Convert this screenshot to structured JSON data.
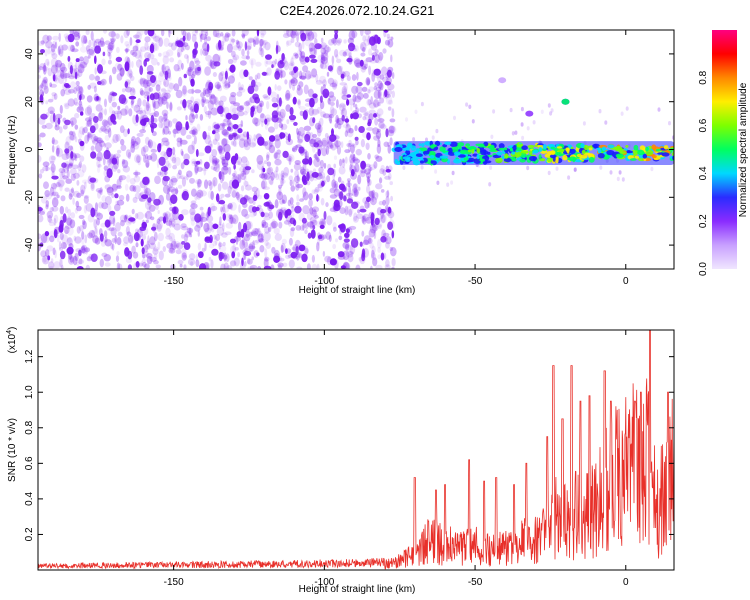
{
  "figure_title": "C2E4.2026.072.10.24.G21",
  "colors": {
    "snr_line": "#e8302a",
    "spec_dot": "#7c1cf0",
    "axis": "#000000"
  },
  "chart_data": [
    {
      "type": "heatmap",
      "name": "spectrogram",
      "title": "",
      "xlabel": "Height of straight line (km)",
      "ylabel": "Frequency (Hz)",
      "xlim": [
        -195,
        16
      ],
      "ylim": [
        -50,
        50
      ],
      "xticks": [
        -150,
        -100,
        -50,
        0
      ],
      "yticks": [
        -40,
        -20,
        0,
        20,
        40
      ],
      "noise_region_x": [
        -195,
        -77
      ],
      "signal_band": {
        "x_start": -77,
        "x_end": 16,
        "center_hz": -1.5,
        "half_width_hz": 5
      },
      "colorbar": {
        "label": "Normalized spectral amplitude",
        "range": [
          0,
          1
        ],
        "ticks": [
          0.0,
          0.2,
          0.4,
          0.6,
          0.8
        ],
        "colormap": [
          "#f0e6ff",
          "#c8a0ff",
          "#8a2cff",
          "#2a2cff",
          "#00d8ff",
          "#00ff60",
          "#7dff00",
          "#ffee00",
          "#ff8800",
          "#ff0000",
          "#ff0080"
        ]
      }
    },
    {
      "type": "line",
      "name": "snr",
      "title": "",
      "xlabel": "Height of straight line (km)",
      "ylabel": "SNR (10 * v/v)",
      "y_multiplier": "(x10",
      "y_multiplier_exp": "4",
      "y_multiplier_close": ")",
      "xlim": [
        -195,
        16
      ],
      "ylim": [
        0,
        1.35
      ],
      "xticks": [
        -150,
        -100,
        -50,
        0
      ],
      "yticks": [
        0.2,
        0.4,
        0.6,
        0.8,
        1.0,
        1.2
      ],
      "envelope": {
        "x": [
          -195,
          -160,
          -120,
          -90,
          -78,
          -72,
          -68,
          -65,
          -60,
          -55,
          -50,
          -45,
          -40,
          -35,
          -30,
          -26,
          -23,
          -20,
          -16,
          -12,
          -8,
          -4,
          0,
          4,
          7,
          9,
          10,
          12,
          14,
          16
        ],
        "y": [
          0.02,
          0.025,
          0.03,
          0.035,
          0.04,
          0.08,
          0.15,
          0.18,
          0.16,
          0.14,
          0.15,
          0.12,
          0.14,
          0.17,
          0.2,
          0.28,
          0.32,
          0.3,
          0.35,
          0.38,
          0.45,
          0.55,
          0.62,
          0.68,
          0.72,
          0.55,
          0.35,
          0.45,
          0.65,
          0.75
        ]
      },
      "spikes": [
        {
          "x": -70,
          "y": 0.52
        },
        {
          "x": -63,
          "y": 0.45
        },
        {
          "x": -60,
          "y": 0.48
        },
        {
          "x": -52,
          "y": 0.62
        },
        {
          "x": -47,
          "y": 0.5
        },
        {
          "x": -43,
          "y": 0.52
        },
        {
          "x": -37,
          "y": 0.48
        },
        {
          "x": -33,
          "y": 0.6
        },
        {
          "x": -26,
          "y": 0.75
        },
        {
          "x": -24,
          "y": 1.15
        },
        {
          "x": -21,
          "y": 0.85
        },
        {
          "x": -18,
          "y": 1.15
        },
        {
          "x": -15,
          "y": 0.95
        },
        {
          "x": -12,
          "y": 0.98
        },
        {
          "x": -7,
          "y": 1.12
        },
        {
          "x": -5,
          "y": 0.95
        },
        {
          "x": 3,
          "y": 0.95
        },
        {
          "x": 5,
          "y": 1.0
        },
        {
          "x": 8,
          "y": 1.35
        },
        {
          "x": 14,
          "y": 1.0
        }
      ]
    }
  ]
}
